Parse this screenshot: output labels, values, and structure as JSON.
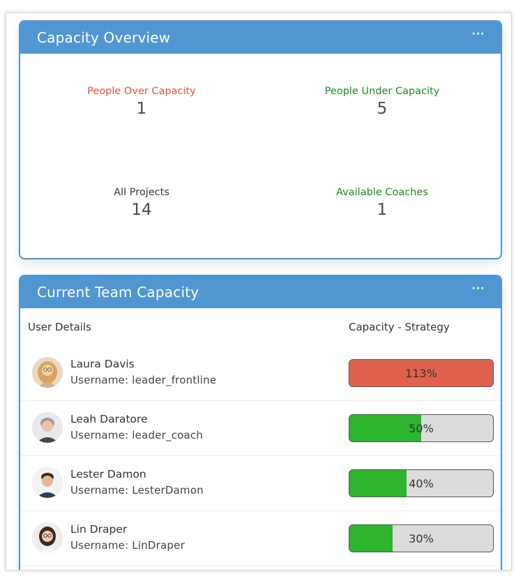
{
  "overview": {
    "title": "Capacity Overview",
    "menu_label": "···",
    "stats": [
      {
        "label": "People Over Capacity",
        "value": "1",
        "color": "#e0523a"
      },
      {
        "label": "People Under Capacity",
        "value": "5",
        "color": "#1f8a1f"
      },
      {
        "label": "All Projects",
        "value": "14",
        "color": "#3a3a3a"
      },
      {
        "label": "Available Coaches",
        "value": "1",
        "color": "#1f8a1f"
      }
    ]
  },
  "team": {
    "title": "Current Team Capacity",
    "menu_label": "···",
    "columns": [
      "User Details",
      "Capacity - Strategy"
    ],
    "rows": [
      {
        "name": "Laura Davis",
        "username": "Username: leader_frontline",
        "capacity_label": "113%",
        "capacity_percent": 113,
        "bar_color": "#e0614e"
      },
      {
        "name": "Leah Daratore",
        "username": "Username: leader_coach",
        "capacity_label": "50%",
        "capacity_percent": 50,
        "bar_color": "#2db52d"
      },
      {
        "name": "Lester Damon",
        "username": "Username: LesterDamon",
        "capacity_label": "40%",
        "capacity_percent": 40,
        "bar_color": "#2db52d"
      },
      {
        "name": "Lin Draper",
        "username": "Username: LinDraper",
        "capacity_label": "30%",
        "capacity_percent": 30,
        "bar_color": "#2db52d"
      }
    ]
  },
  "colors": {
    "header_blue": "#5097d2",
    "border_blue": "#4e94cd",
    "over_red": "#e0614e",
    "under_green": "#2db52d",
    "bar_track": "#dcdcdc"
  }
}
